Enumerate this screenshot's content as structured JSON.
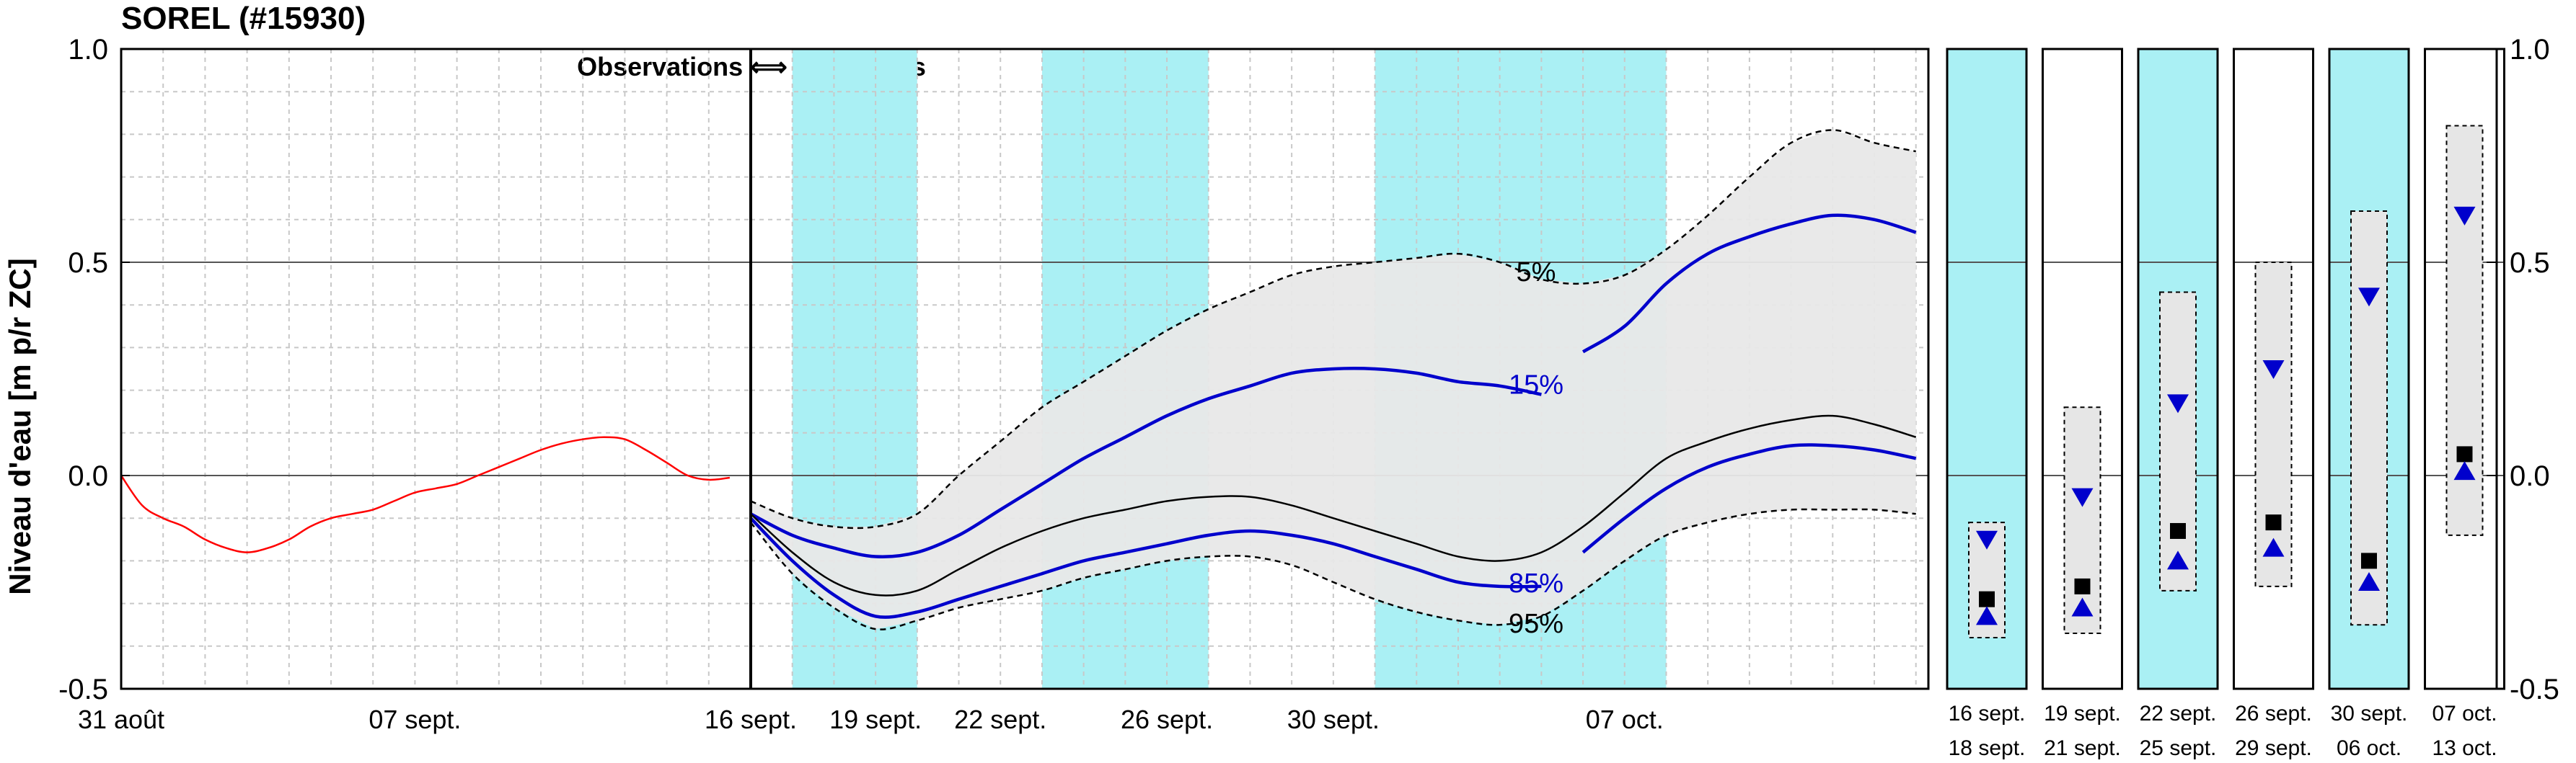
{
  "chart_data": {
    "type": "line",
    "title": "SOREL (#15930)",
    "ylabel": "Niveau d'eau [m p/r ZC]",
    "ylim": [
      -0.5,
      1.0
    ],
    "y_ticks": [
      "1.0",
      "0.5",
      "0.0",
      "-0.5"
    ],
    "grid": true,
    "divider_label": "Observations ⟺ Prévisions",
    "x_ticks_observations": [
      {
        "label": "31 août",
        "day": 0
      },
      {
        "label": "07 sept.",
        "day": 7
      }
    ],
    "x_ticks_forecast": [
      {
        "label": "16 sept.",
        "day": 16
      },
      {
        "label": "19 sept.",
        "day": 19
      },
      {
        "label": "22 sept.",
        "day": 22
      },
      {
        "label": "26 sept.",
        "day": 26
      },
      {
        "label": "30 sept.",
        "day": 30
      },
      {
        "label": "07 oct.",
        "day": 37
      }
    ],
    "shaded_periods": [
      [
        17,
        20
      ],
      [
        23,
        27
      ],
      [
        31,
        38
      ]
    ],
    "percentile_labels": [
      {
        "text": "5%",
        "color": "#000000"
      },
      {
        "text": "15%",
        "color": "#0000cc"
      },
      {
        "text": "85%",
        "color": "#0000cc"
      },
      {
        "text": "95%",
        "color": "#000000"
      }
    ],
    "observed": {
      "color": "#ff0000",
      "x": [
        0,
        0.5,
        1,
        1.5,
        2,
        2.5,
        3,
        3.5,
        4,
        4.5,
        5,
        5.5,
        6,
        6.5,
        7,
        7.5,
        8,
        8.5,
        9,
        9.5,
        10,
        10.5,
        11,
        11.5,
        12,
        12.5,
        13,
        13.5,
        14,
        14.5
      ],
      "y": [
        0.0,
        -0.07,
        -0.1,
        -0.12,
        -0.15,
        -0.17,
        -0.18,
        -0.17,
        -0.15,
        -0.12,
        -0.1,
        -0.09,
        -0.08,
        -0.06,
        -0.04,
        -0.03,
        -0.02,
        0.0,
        0.02,
        0.04,
        0.06,
        0.075,
        0.085,
        0.09,
        0.085,
        0.06,
        0.03,
        0.0,
        -0.01,
        -0.005
      ]
    },
    "series": [
      {
        "name": "5%",
        "style": "dashed",
        "color": "#000000",
        "x": [
          16,
          17,
          18,
          19,
          20,
          21,
          22,
          23,
          24,
          25,
          26,
          27,
          28,
          29,
          30,
          31,
          32,
          33,
          34,
          35,
          36,
          37,
          38,
          39,
          40,
          41,
          42,
          43,
          44
        ],
        "y": [
          -0.06,
          -0.1,
          -0.12,
          -0.12,
          -0.09,
          0.0,
          0.08,
          0.16,
          0.22,
          0.28,
          0.34,
          0.39,
          0.43,
          0.47,
          0.49,
          0.5,
          0.51,
          0.52,
          0.5,
          0.46,
          0.45,
          0.47,
          0.53,
          0.61,
          0.7,
          0.78,
          0.81,
          0.78,
          0.76
        ]
      },
      {
        "name": "15%",
        "style": "solid",
        "color": "#0000cc",
        "label_color": "#0000cc",
        "x": [
          16,
          17,
          18,
          19,
          20,
          21,
          22,
          23,
          24,
          25,
          26,
          27,
          28,
          29,
          30,
          31,
          32,
          33,
          34,
          35
        ],
        "y": [
          -0.09,
          -0.14,
          -0.17,
          -0.19,
          -0.18,
          -0.14,
          -0.08,
          -0.02,
          0.04,
          0.09,
          0.14,
          0.18,
          0.21,
          0.24,
          0.25,
          0.25,
          0.24,
          0.22,
          0.21,
          0.19
        ]
      },
      {
        "name": "15% (suite)",
        "style": "solid",
        "color": "#0000cc",
        "x": [
          36,
          37,
          38,
          39,
          40,
          41,
          42,
          43,
          44
        ],
        "y": [
          0.29,
          0.35,
          0.45,
          0.52,
          0.56,
          0.59,
          0.61,
          0.6,
          0.57
        ]
      },
      {
        "name": "médiane",
        "style": "solid",
        "color": "#000000",
        "x": [
          16,
          17,
          18,
          19,
          20,
          21,
          22,
          23,
          24,
          25,
          26,
          27,
          28,
          29,
          30,
          31,
          32,
          33,
          34,
          35,
          36,
          37,
          38,
          39,
          40,
          41,
          42,
          43,
          44
        ],
        "y": [
          -0.09,
          -0.18,
          -0.25,
          -0.28,
          -0.27,
          -0.22,
          -0.17,
          -0.13,
          -0.1,
          -0.08,
          -0.06,
          -0.05,
          -0.05,
          -0.07,
          -0.1,
          -0.13,
          -0.16,
          -0.19,
          -0.2,
          -0.18,
          -0.12,
          -0.04,
          0.04,
          0.08,
          0.11,
          0.13,
          0.14,
          0.12,
          0.09
        ]
      },
      {
        "name": "85%",
        "style": "solid",
        "color": "#0000cc",
        "label_color": "#0000cc",
        "x": [
          16,
          17,
          18,
          19,
          20,
          21,
          22,
          23,
          24,
          25,
          26,
          27,
          28,
          29,
          30,
          31,
          32,
          33,
          34,
          35
        ],
        "y": [
          -0.1,
          -0.2,
          -0.28,
          -0.33,
          -0.32,
          -0.29,
          -0.26,
          -0.23,
          -0.2,
          -0.18,
          -0.16,
          -0.14,
          -0.13,
          -0.14,
          -0.16,
          -0.19,
          -0.22,
          -0.25,
          -0.26,
          -0.26
        ]
      },
      {
        "name": "85% (suite)",
        "style": "solid",
        "color": "#0000cc",
        "x": [
          36,
          37,
          38,
          39,
          40,
          41,
          42,
          43,
          44
        ],
        "y": [
          -0.18,
          -0.1,
          -0.03,
          0.02,
          0.05,
          0.07,
          0.07,
          0.06,
          0.04
        ]
      },
      {
        "name": "95%",
        "style": "dashed",
        "color": "#000000",
        "x": [
          16,
          17,
          18,
          19,
          20,
          21,
          22,
          23,
          24,
          25,
          26,
          27,
          28,
          29,
          30,
          31,
          32,
          33,
          34,
          35,
          36,
          37,
          38,
          39,
          40,
          41,
          42,
          43,
          44
        ],
        "y": [
          -0.11,
          -0.23,
          -0.31,
          -0.36,
          -0.34,
          -0.31,
          -0.29,
          -0.27,
          -0.24,
          -0.22,
          -0.2,
          -0.19,
          -0.19,
          -0.21,
          -0.25,
          -0.29,
          -0.32,
          -0.34,
          -0.35,
          -0.33,
          -0.27,
          -0.2,
          -0.14,
          -0.11,
          -0.09,
          -0.08,
          -0.08,
          -0.08,
          -0.09
        ]
      }
    ],
    "boxes": [
      {
        "label1": "16 sept.",
        "label2": "18 sept.",
        "shaded": true,
        "lo": -0.38,
        "hi": -0.11,
        "down_tri": -0.15,
        "square": -0.29,
        "up_tri": -0.33
      },
      {
        "label1": "19 sept.",
        "label2": "21 sept.",
        "shaded": false,
        "lo": -0.37,
        "hi": 0.16,
        "down_tri": -0.05,
        "square": -0.26,
        "up_tri": -0.31
      },
      {
        "label1": "22 sept.",
        "label2": "25 sept.",
        "shaded": true,
        "lo": -0.27,
        "hi": 0.43,
        "down_tri": 0.17,
        "square": -0.13,
        "up_tri": -0.2
      },
      {
        "label1": "26 sept.",
        "label2": "29 sept.",
        "shaded": false,
        "lo": -0.26,
        "hi": 0.5,
        "down_tri": 0.25,
        "square": -0.11,
        "up_tri": -0.17
      },
      {
        "label1": "30 sept.",
        "label2": "06 oct.",
        "shaded": true,
        "lo": -0.35,
        "hi": 0.62,
        "down_tri": 0.42,
        "square": -0.2,
        "up_tri": -0.25
      },
      {
        "label1": "07 oct.",
        "label2": "13 oct.",
        "shaded": false,
        "lo": -0.14,
        "hi": 0.82,
        "down_tri": 0.61,
        "square": 0.05,
        "up_tri": 0.01
      }
    ],
    "colors": {
      "shading": "#aaf0f4",
      "band": "#e8e8e8",
      "observed": "#ff0000",
      "blue": "#0000cc"
    }
  }
}
